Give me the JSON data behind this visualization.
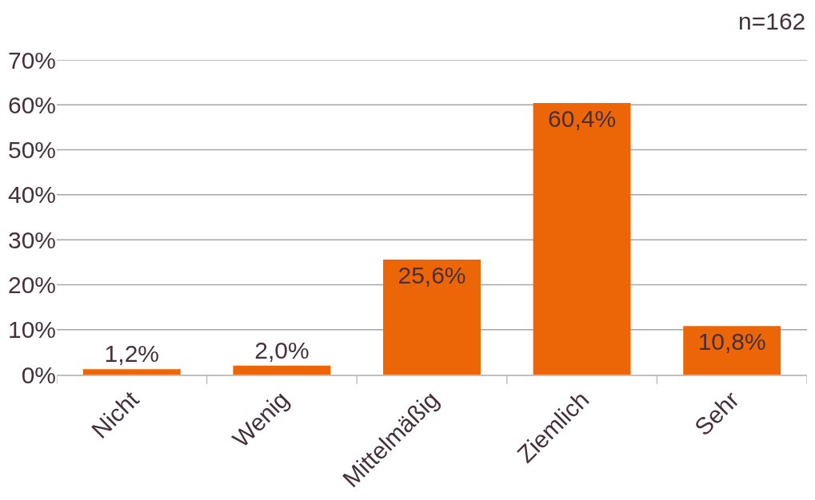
{
  "chart_data": {
    "type": "bar",
    "categories": [
      "Nicht",
      "Wenig",
      "Mittelmäßig",
      "Ziemlich",
      "Sehr"
    ],
    "values": [
      1.2,
      2.0,
      25.6,
      60.4,
      10.8
    ],
    "value_labels": [
      "1,2%",
      "2,0%",
      "25,6%",
      "60,4%",
      "10,8%"
    ],
    "color": "#ec6608",
    "ylim": [
      0,
      70
    ],
    "yticks": [
      {
        "value": 0,
        "label": "0%"
      },
      {
        "value": 10,
        "label": "10%"
      },
      {
        "value": 20,
        "label": "20%"
      },
      {
        "value": 30,
        "label": "30%"
      },
      {
        "value": 40,
        "label": "40%"
      },
      {
        "value": 50,
        "label": "50%"
      },
      {
        "value": 60,
        "label": "60%"
      },
      {
        "value": 70,
        "label": "70%"
      }
    ],
    "grid": "y",
    "annotations": [
      "n=162"
    ]
  }
}
